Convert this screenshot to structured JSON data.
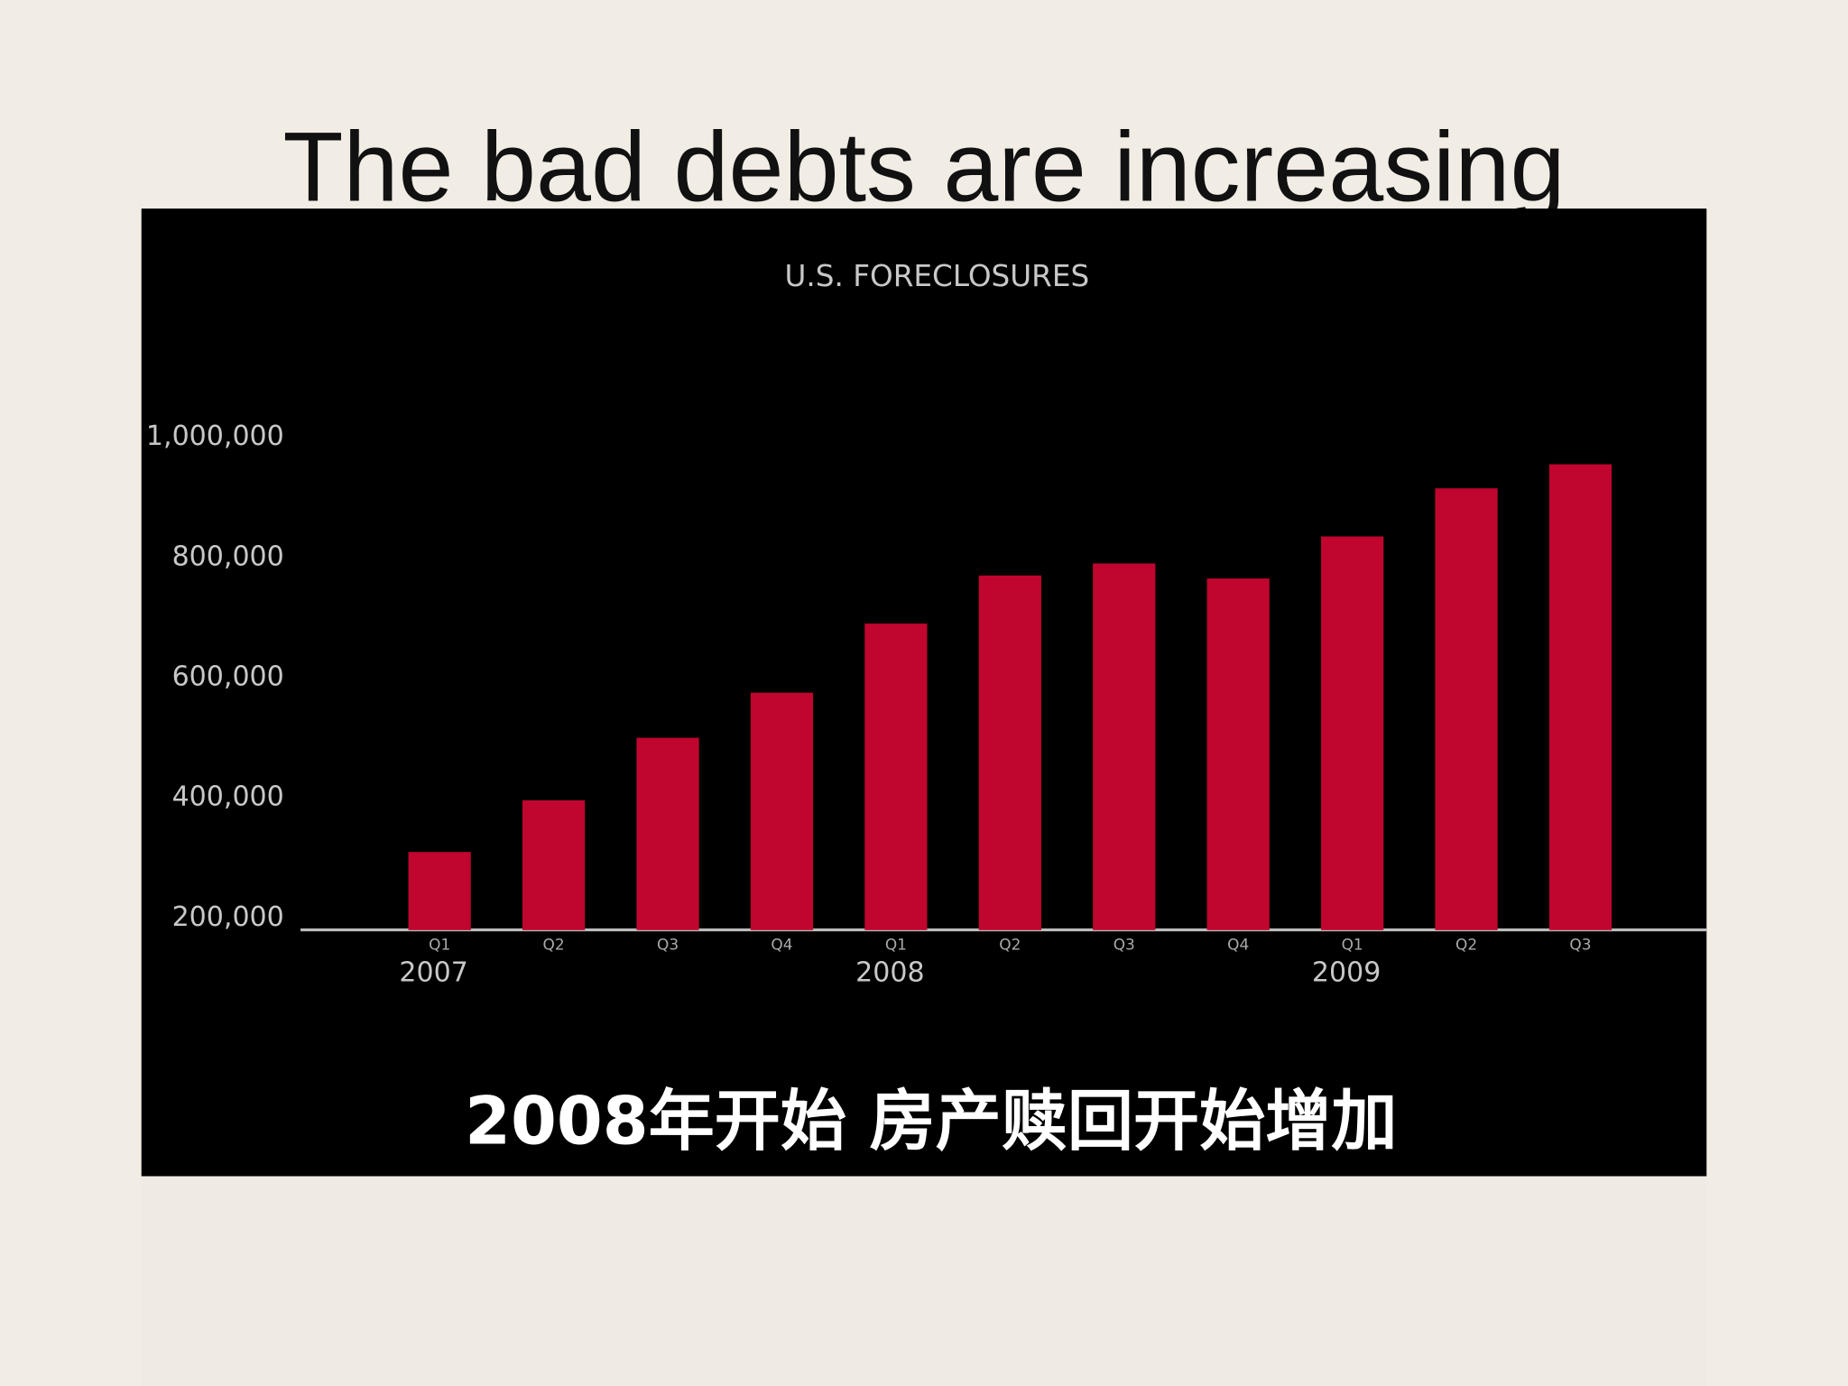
{
  "slide": {
    "title": "The bad debts are increasing",
    "caption": "2008年开始  房产赎回开始增加"
  },
  "chart_data": {
    "type": "bar",
    "title": "U.S. FORECLOSURES",
    "categories": [
      "Q1",
      "Q2",
      "Q3",
      "Q4",
      "Q1",
      "Q2",
      "Q3",
      "Q4",
      "Q1",
      "Q2",
      "Q3"
    ],
    "x_group_labels": [
      "2007",
      null,
      null,
      null,
      "2008",
      null,
      null,
      null,
      "2009",
      null,
      null
    ],
    "values": [
      310000,
      396000,
      500000,
      575000,
      690000,
      770000,
      790000,
      765000,
      835000,
      915000,
      955000
    ],
    "color": "#c0052f",
    "ylim": [
      180000,
      1000000
    ],
    "yticks": [
      {
        "value": 200000,
        "label": "200,000"
      },
      {
        "value": 400000,
        "label": "400,000"
      },
      {
        "value": 600000,
        "label": "600,000"
      },
      {
        "value": 800000,
        "label": "800,000"
      },
      {
        "value": 1000000,
        "label": "1,000,000"
      }
    ],
    "grid": false
  }
}
